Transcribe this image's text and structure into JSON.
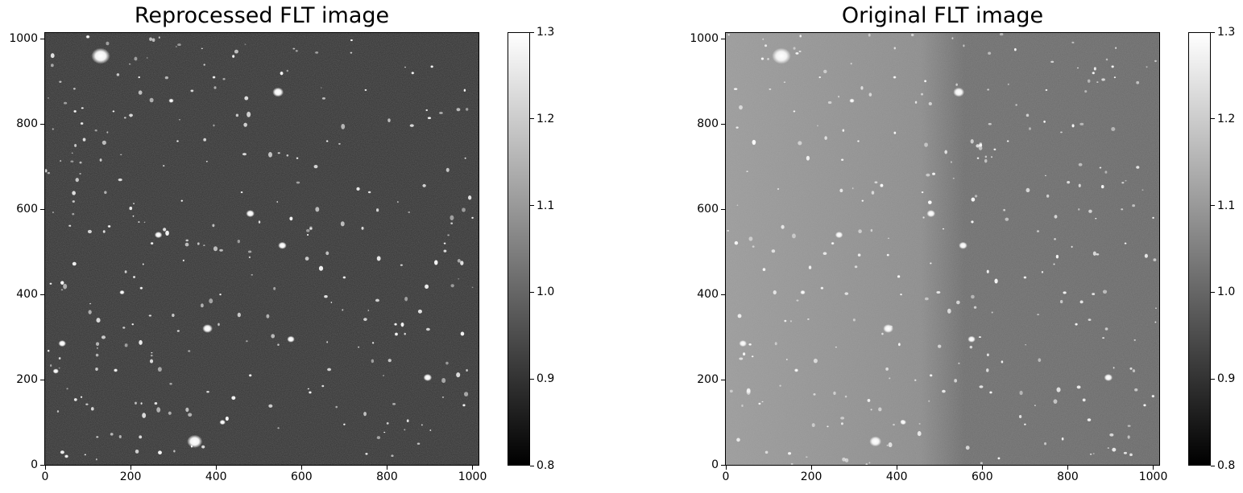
{
  "chart_data": [
    {
      "type": "heatmap",
      "title": "Reprocessed FLT image",
      "xlim": [
        0,
        1014
      ],
      "ylim": [
        0,
        1014
      ],
      "xticks": [
        "0",
        "200",
        "400",
        "600",
        "800",
        "1000"
      ],
      "yticks": [
        "0",
        "200",
        "400",
        "600",
        "800",
        "1000"
      ],
      "colormap": "gray",
      "colorbar": {
        "vmin": 0.8,
        "vmax": 1.3,
        "ticks": [
          "0.8",
          "0.9",
          "1.0",
          "1.1",
          "1.2",
          "1.3"
        ]
      },
      "background_level": "dark",
      "sources": [
        {
          "x": 130,
          "y": 960,
          "r": 22
        },
        {
          "x": 545,
          "y": 875,
          "r": 13
        },
        {
          "x": 480,
          "y": 590,
          "r": 10
        },
        {
          "x": 555,
          "y": 515,
          "r": 10
        },
        {
          "x": 380,
          "y": 320,
          "r": 12
        },
        {
          "x": 575,
          "y": 295,
          "r": 9
        },
        {
          "x": 40,
          "y": 285,
          "r": 9
        },
        {
          "x": 895,
          "y": 205,
          "r": 10
        },
        {
          "x": 265,
          "y": 540,
          "r": 9
        },
        {
          "x": 350,
          "y": 55,
          "r": 18
        },
        {
          "x": 415,
          "y": 100,
          "r": 7
        },
        {
          "x": 25,
          "y": 220,
          "r": 7
        },
        {
          "x": 165,
          "y": 222,
          "r": 5
        },
        {
          "x": 180,
          "y": 405,
          "r": 6
        },
        {
          "x": 225,
          "y": 415,
          "r": 4
        },
        {
          "x": 295,
          "y": 855,
          "r": 6
        },
        {
          "x": 395,
          "y": 910,
          "r": 4
        },
        {
          "x": 100,
          "y": 1005,
          "r": 5
        },
        {
          "x": 480,
          "y": 210,
          "r": 4
        },
        {
          "x": 620,
          "y": 170,
          "r": 4
        },
        {
          "x": 700,
          "y": 440,
          "r": 4
        },
        {
          "x": 820,
          "y": 330,
          "r": 4
        },
        {
          "x": 980,
          "y": 140,
          "r": 4
        },
        {
          "x": 220,
          "y": 910,
          "r": 3
        },
        {
          "x": 160,
          "y": 830,
          "r": 3
        },
        {
          "x": 320,
          "y": 620,
          "r": 3
        },
        {
          "x": 460,
          "y": 640,
          "r": 3
        },
        {
          "x": 750,
          "y": 880,
          "r": 3
        },
        {
          "x": 860,
          "y": 920,
          "r": 4
        },
        {
          "x": 905,
          "y": 935,
          "r": 4
        },
        {
          "x": 660,
          "y": 760,
          "r": 3
        },
        {
          "x": 590,
          "y": 720,
          "r": 3
        },
        {
          "x": 935,
          "y": 520,
          "r": 3
        },
        {
          "x": 1000,
          "y": 580,
          "r": 3
        },
        {
          "x": 50,
          "y": 20,
          "r": 5
        },
        {
          "x": 250,
          "y": 520,
          "r": 4
        },
        {
          "x": 310,
          "y": 760,
          "r": 3
        },
        {
          "x": 70,
          "y": 830,
          "r": 4
        },
        {
          "x": 410,
          "y": 400,
          "r": 3
        },
        {
          "x": 700,
          "y": 95,
          "r": 3
        },
        {
          "x": 150,
          "y": 560,
          "r": 4
        },
        {
          "x": 205,
          "y": 330,
          "r": 3
        }
      ]
    },
    {
      "type": "heatmap",
      "title": "Original FLT image",
      "xlim": [
        0,
        1014
      ],
      "ylim": [
        0,
        1014
      ],
      "xticks": [
        "0",
        "200",
        "400",
        "600",
        "800",
        "1000"
      ],
      "yticks": [
        "0",
        "200",
        "400",
        "600",
        "800",
        "1000"
      ],
      "colormap": "gray",
      "colorbar": {
        "vmin": 0.8,
        "vmax": 1.3,
        "ticks": [
          "0.8",
          "0.9",
          "1.0",
          "1.1",
          "1.2",
          "1.3"
        ]
      },
      "background_level": "medium with brighter left half",
      "sources": [
        {
          "x": 130,
          "y": 960,
          "r": 22
        },
        {
          "x": 545,
          "y": 875,
          "r": 13
        },
        {
          "x": 480,
          "y": 590,
          "r": 10
        },
        {
          "x": 555,
          "y": 515,
          "r": 10
        },
        {
          "x": 380,
          "y": 320,
          "r": 12
        },
        {
          "x": 575,
          "y": 295,
          "r": 9
        },
        {
          "x": 40,
          "y": 285,
          "r": 9
        },
        {
          "x": 895,
          "y": 205,
          "r": 10
        },
        {
          "x": 265,
          "y": 540,
          "r": 9
        },
        {
          "x": 350,
          "y": 55,
          "r": 14
        },
        {
          "x": 415,
          "y": 100,
          "r": 7
        },
        {
          "x": 165,
          "y": 222,
          "r": 5
        },
        {
          "x": 180,
          "y": 405,
          "r": 6
        },
        {
          "x": 225,
          "y": 415,
          "r": 4
        },
        {
          "x": 295,
          "y": 855,
          "r": 6
        },
        {
          "x": 395,
          "y": 910,
          "r": 4
        },
        {
          "x": 480,
          "y": 210,
          "r": 4
        },
        {
          "x": 620,
          "y": 170,
          "r": 4
        },
        {
          "x": 700,
          "y": 440,
          "r": 4
        },
        {
          "x": 820,
          "y": 330,
          "r": 4
        },
        {
          "x": 980,
          "y": 140,
          "r": 4
        },
        {
          "x": 220,
          "y": 910,
          "r": 3
        },
        {
          "x": 160,
          "y": 830,
          "r": 3
        },
        {
          "x": 320,
          "y": 620,
          "r": 3
        },
        {
          "x": 460,
          "y": 640,
          "r": 3
        },
        {
          "x": 750,
          "y": 880,
          "r": 3
        },
        {
          "x": 860,
          "y": 920,
          "r": 4
        },
        {
          "x": 905,
          "y": 935,
          "r": 4
        },
        {
          "x": 660,
          "y": 760,
          "r": 3
        },
        {
          "x": 590,
          "y": 720,
          "r": 3
        },
        {
          "x": 935,
          "y": 520,
          "r": 3
        },
        {
          "x": 1000,
          "y": 580,
          "r": 3
        },
        {
          "x": 410,
          "y": 400,
          "r": 3
        },
        {
          "x": 700,
          "y": 95,
          "r": 3
        },
        {
          "x": 250,
          "y": 520,
          "r": 4
        },
        {
          "x": 310,
          "y": 760,
          "r": 3
        }
      ]
    }
  ]
}
